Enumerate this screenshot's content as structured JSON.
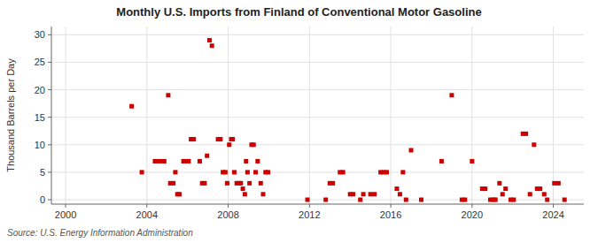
{
  "chart_data": {
    "type": "scatter",
    "title": "Monthly U.S. Imports from Finland of Conventional Motor Gasoline",
    "y_label": "Thousand Barrels per Day",
    "annotations": [
      "Source: U.S. Energy Information Administration"
    ],
    "color": "#cc0000",
    "marker": "square",
    "grid": true,
    "xlim": [
      1999.3,
      2025.5
    ],
    "xticks": [
      2000,
      2004,
      2008,
      2012,
      2016,
      2020,
      2024
    ],
    "ylim": [
      -0.8,
      31.5
    ],
    "yticks": [
      0,
      5,
      10,
      15,
      20,
      25,
      30
    ],
    "x": [
      2003.25,
      2003.75,
      2004.4,
      2004.55,
      2004.7,
      2004.85,
      2005.05,
      2005.15,
      2005.3,
      2005.4,
      2005.5,
      2005.6,
      2005.8,
      2005.92,
      2006.05,
      2006.17,
      2006.3,
      2006.6,
      2006.72,
      2006.84,
      2006.96,
      2007.08,
      2007.2,
      2007.5,
      2007.62,
      2007.74,
      2007.86,
      2007.95,
      2008.05,
      2008.15,
      2008.22,
      2008.3,
      2008.42,
      2008.52,
      2008.62,
      2008.72,
      2008.82,
      2008.88,
      2008.95,
      2009.05,
      2009.15,
      2009.25,
      2009.35,
      2009.45,
      2009.6,
      2009.72,
      2009.84,
      2009.96,
      2011.9,
      2012.8,
      2013.0,
      2013.15,
      2013.5,
      2013.65,
      2014.0,
      2014.15,
      2014.5,
      2014.65,
      2015.0,
      2015.2,
      2015.5,
      2015.65,
      2015.8,
      2016.3,
      2016.45,
      2016.6,
      2016.75,
      2017.0,
      2017.5,
      2018.5,
      2019.0,
      2019.5,
      2019.65,
      2020.0,
      2020.5,
      2020.65,
      2020.9,
      2021.05,
      2021.15,
      2021.35,
      2021.5,
      2021.65,
      2021.9,
      2022.05,
      2022.5,
      2022.65,
      2022.85,
      2023.05,
      2023.2,
      2023.35,
      2023.55,
      2023.7,
      2024.05,
      2024.25,
      2024.55
    ],
    "values": [
      17,
      5,
      7,
      7,
      7,
      7,
      19,
      3,
      3,
      5,
      1,
      1,
      7,
      7,
      7,
      11,
      11,
      7,
      3,
      3,
      8,
      29,
      28,
      11,
      11,
      5,
      5,
      3,
      10,
      11,
      11,
      5,
      3,
      3,
      3,
      2,
      1,
      7,
      5,
      3,
      10,
      10,
      5,
      7,
      3,
      1,
      5,
      5,
      0,
      0,
      3,
      3,
      5,
      5,
      1,
      1,
      0,
      1,
      1,
      1,
      5,
      5,
      5,
      2,
      1,
      5,
      0,
      9,
      0,
      7,
      19,
      0,
      0,
      7,
      2,
      2,
      0,
      0,
      0,
      3,
      1,
      2,
      0,
      0,
      12,
      12,
      1,
      10,
      2,
      2,
      1,
      0,
      3,
      3,
      0
    ]
  }
}
